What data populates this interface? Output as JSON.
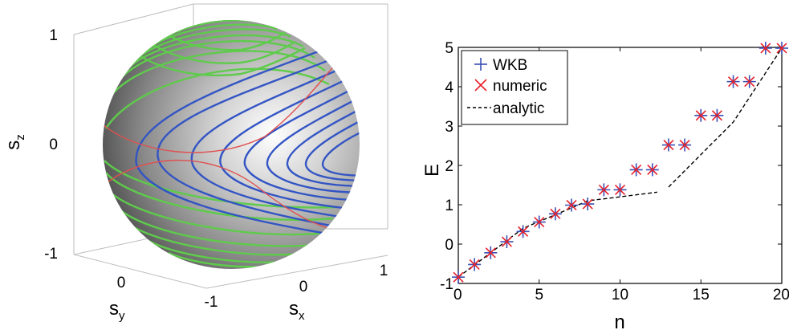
{
  "chart_data": [
    {
      "type": "3d-surface",
      "zlabel": "s",
      "zlabel_sub": "z",
      "xlabel": "s",
      "xlabel_sub": "x",
      "ylabel": "s",
      "ylabel_sub": "y",
      "z_ticks": [
        "1",
        "0",
        "-1"
      ],
      "y_ticks": [
        "0"
      ],
      "x_ticks": [
        "-1",
        "0",
        "1"
      ],
      "zlim": [
        -1,
        1
      ],
      "xlim": [
        -1,
        1
      ],
      "ylim": [
        -1,
        1
      ],
      "colors": {
        "sphere": "#9a9a9a",
        "green_contours": "#5ecb4b",
        "blue_contours": "#3355c4",
        "separatrix": "#e05050"
      }
    },
    {
      "type": "scatter",
      "xlabel": "n",
      "ylabel": "E",
      "xlim": [
        0,
        20
      ],
      "ylim": [
        -1,
        5
      ],
      "x_ticks": [
        "0",
        "5",
        "10",
        "15",
        "20"
      ],
      "y_ticks": [
        "-1",
        "0",
        "1",
        "2",
        "3",
        "4",
        "5"
      ],
      "legend_position": "top-left",
      "series": [
        {
          "name": "WKB",
          "marker": "+",
          "color": "#3a4fb5",
          "x": [
            0,
            1,
            2,
            3,
            4,
            5,
            6,
            7,
            8,
            9,
            10,
            11,
            12,
            13,
            14,
            15,
            16,
            17,
            18,
            19,
            20
          ],
          "y": [
            -0.84,
            -0.52,
            -0.22,
            0.06,
            0.32,
            0.56,
            0.77,
            0.99,
            1.02,
            1.38,
            1.38,
            1.89,
            1.89,
            2.52,
            2.52,
            3.27,
            3.27,
            4.13,
            4.13,
            4.98,
            4.98
          ]
        },
        {
          "name": "numeric",
          "marker": "x",
          "color": "#e8202a",
          "x": [
            0,
            1,
            2,
            3,
            4,
            5,
            6,
            7,
            8,
            9,
            10,
            11,
            12,
            13,
            14,
            15,
            16,
            17,
            18,
            19,
            20
          ],
          "y": [
            -0.84,
            -0.52,
            -0.22,
            0.06,
            0.32,
            0.56,
            0.77,
            0.99,
            1.02,
            1.38,
            1.38,
            1.89,
            1.89,
            2.52,
            2.52,
            3.27,
            3.27,
            4.13,
            4.13,
            4.98,
            4.98
          ]
        },
        {
          "name": "analytic",
          "marker": "dashed-line",
          "color": "#000000",
          "segments": [
            {
              "x": [
                0,
                4,
                7,
                8,
                10,
                12.3
              ],
              "y": [
                -0.84,
                0.4,
                0.92,
                1.1,
                1.2,
                1.32
              ]
            },
            {
              "x": [
                13,
                17,
                20
              ],
              "y": [
                1.45,
                3.1,
                4.98
              ]
            }
          ]
        }
      ]
    }
  ]
}
